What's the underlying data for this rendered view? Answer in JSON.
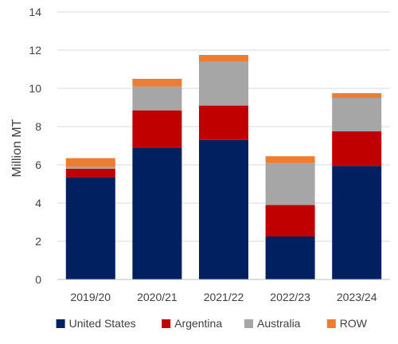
{
  "chart_data": {
    "type": "bar",
    "stacked": true,
    "title": "",
    "xlabel": "",
    "ylabel": "Million MT",
    "ylim": [
      0,
      14
    ],
    "yticks": [
      "0",
      "2",
      "4",
      "6",
      "8",
      "10",
      "12",
      "14"
    ],
    "grid": true,
    "legend_position": "bottom",
    "categories": [
      "2019/20",
      "2020/21",
      "2021/22",
      "2022/23",
      "2023/24"
    ],
    "series": [
      {
        "name": "United States",
        "color": "#002060",
        "values": [
          5.35,
          6.9,
          7.3,
          2.25,
          5.95
        ]
      },
      {
        "name": "Argentina",
        "color": "#c00000",
        "values": [
          0.45,
          1.95,
          1.8,
          1.65,
          1.8
        ]
      },
      {
        "name": "Australia",
        "color": "#a6a6a6",
        "values": [
          0.1,
          1.25,
          2.3,
          2.2,
          1.75
        ]
      },
      {
        "name": "ROW",
        "color": "#ed7d31",
        "values": [
          0.45,
          0.4,
          0.35,
          0.35,
          0.25
        ]
      }
    ]
  }
}
